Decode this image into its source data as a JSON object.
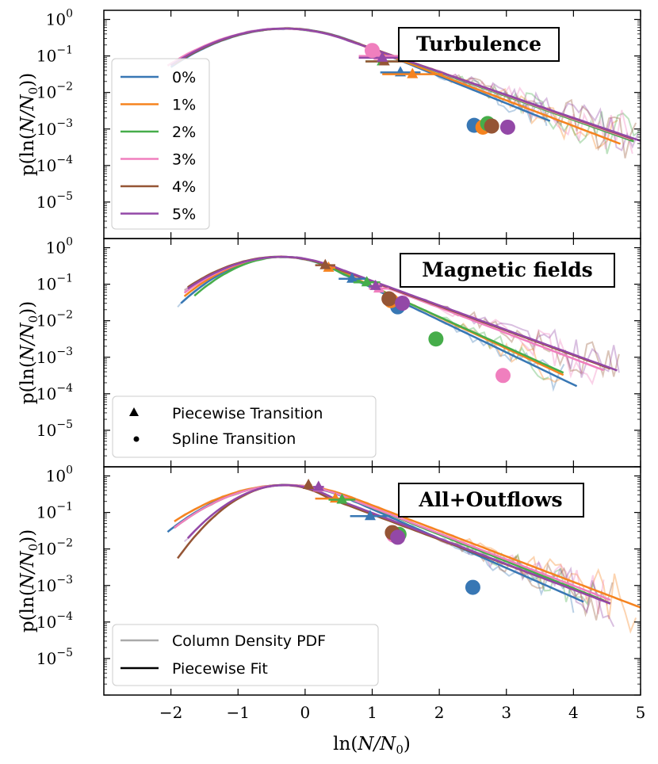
{
  "colors": {
    "0%": "#3877b4",
    "1%": "#f5831f",
    "2%": "#46ad4a",
    "3%": "#f07fbe",
    "4%": "#955535",
    "5%": "#9348a7"
  },
  "chart_data": {
    "type": "line",
    "xlabel_prefix": "ln(",
    "xlabel_var": "N/N",
    "xlabel_sub": "0",
    "xlabel_suffix": ")",
    "ylabel_prefix": "p(ln(",
    "ylabel_var": "N/N",
    "ylabel_sub": "0",
    "ylabel_suffix": "))",
    "xlim": [
      -3,
      5
    ],
    "x_ticks": [
      -2,
      -1,
      0,
      1,
      2,
      3,
      4,
      5
    ],
    "x_tick_labels": [
      "−2",
      "−1",
      "0",
      "1",
      "2",
      "3",
      "4",
      "5"
    ],
    "ylim_log10": [
      -6,
      0.25
    ],
    "y_ticks_log10": [
      0,
      -1,
      -2,
      -3,
      -4,
      -5
    ],
    "y_tick_base": "10",
    "y_tick_exps": [
      "0",
      "−1",
      "−2",
      "−3",
      "−4",
      "−5"
    ],
    "series_names": [
      "0%",
      "1%",
      "2%",
      "3%",
      "4%",
      "5%"
    ],
    "panels": [
      {
        "title": "Turbulence",
        "legend": {
          "placement": "left",
          "entries": [
            "0%",
            "1%",
            "2%",
            "3%",
            "4%",
            "5%"
          ]
        },
        "fits": [
          {
            "series": "0%",
            "peak": -0.28,
            "width": 0.78,
            "slope": 1.06,
            "xstart": -2.0,
            "xend": 3.65,
            "lo": -1.92,
            "hi": 3.65
          },
          {
            "series": "1%",
            "peak": -0.3,
            "width": 0.78,
            "slope": 1.0,
            "xstart": -1.95,
            "xend": 4.7,
            "lo": -1.9,
            "hi": 4.7
          },
          {
            "series": "2%",
            "peak": -0.3,
            "width": 0.78,
            "slope": 0.93,
            "xstart": -1.95,
            "xend": 4.9,
            "lo": -1.9,
            "hi": 5.0
          },
          {
            "series": "3%",
            "peak": -0.32,
            "width": 0.8,
            "slope": 0.92,
            "xstart": -2.05,
            "xend": 4.85,
            "lo": -2.0,
            "hi": 4.9
          },
          {
            "series": "4%",
            "peak": -0.3,
            "width": 0.78,
            "slope": 0.91,
            "xstart": -1.95,
            "xend": 4.9,
            "lo": -1.95,
            "hi": 4.95
          },
          {
            "series": "5%",
            "peak": -0.32,
            "width": 0.78,
            "slope": 0.9,
            "xstart": -2.0,
            "xend": 5.0,
            "lo": -2.0,
            "hi": 5.0
          }
        ],
        "triangles": [
          {
            "series": "0%",
            "x": 1.42,
            "y_log10": -1.45,
            "xerr": 0.3
          },
          {
            "series": "1%",
            "x": 1.6,
            "y_log10": -1.5,
            "xerr": 0.45
          },
          {
            "series": "2%",
            "x": 1.15,
            "y_log10": -1.15,
            "xerr": 0.25
          },
          {
            "series": "3%",
            "x": 1.1,
            "y_log10": -1.0,
            "xerr": 0.3
          },
          {
            "series": "4%",
            "x": 1.18,
            "y_log10": -1.15,
            "xerr": 0.28
          },
          {
            "series": "5%",
            "x": 1.15,
            "y_log10": -1.05,
            "xerr": 0.35
          }
        ],
        "circles": [
          {
            "series": "0%",
            "x": 2.52,
            "y_log10": -2.9
          },
          {
            "series": "1%",
            "x": 2.65,
            "y_log10": -2.95
          },
          {
            "series": "2%",
            "x": 2.72,
            "y_log10": -2.85
          },
          {
            "series": "3%",
            "x": 1.0,
            "y_log10": -0.85
          },
          {
            "series": "4%",
            "x": 2.78,
            "y_log10": -2.92
          },
          {
            "series": "5%",
            "x": 3.02,
            "y_log10": -2.95
          }
        ]
      },
      {
        "title": "Magnetic fields",
        "legend": {
          "placement": "lower-left",
          "entries": [
            {
              "marker": "triangle",
              "label": "Piecewise Transition"
            },
            {
              "marker": "circle",
              "label": "Spline Transition"
            }
          ]
        },
        "fits": [
          {
            "series": "0%",
            "peak": -0.35,
            "width": 0.62,
            "slope": 1.26,
            "xstart": -1.85,
            "xend": 4.05,
            "lo": -1.9,
            "hi": 3.9
          },
          {
            "series": "1%",
            "peak": -0.35,
            "width": 0.65,
            "slope": 1.22,
            "xstart": -1.8,
            "xend": 3.85,
            "lo": -1.8,
            "hi": 3.8
          },
          {
            "series": "2%",
            "peak": -0.32,
            "width": 0.6,
            "slope": 1.18,
            "xstart": -1.65,
            "xend": 3.85,
            "lo": -1.65,
            "hi": 3.7
          },
          {
            "series": "3%",
            "peak": -0.35,
            "width": 0.68,
            "slope": 1.0,
            "xstart": -1.8,
            "xend": 4.45,
            "lo": -1.8,
            "hi": 4.4
          },
          {
            "series": "4%",
            "peak": -0.38,
            "width": 0.7,
            "slope": 0.96,
            "xstart": -1.75,
            "xend": 4.55,
            "lo": -1.8,
            "hi": 4.7
          },
          {
            "series": "5%",
            "peak": -0.35,
            "width": 0.7,
            "slope": 0.96,
            "xstart": -1.75,
            "xend": 4.65,
            "lo": -1.8,
            "hi": 4.75
          }
        ],
        "triangles": [
          {
            "series": "0%",
            "x": 0.7,
            "y_log10": -0.85,
            "xerr": 0.2
          },
          {
            "series": "1%",
            "x": 0.35,
            "y_log10": -0.55,
            "xerr": 0.1
          },
          {
            "series": "2%",
            "x": 0.92,
            "y_log10": -0.95,
            "xerr": 0.2
          },
          {
            "series": "3%",
            "x": 1.1,
            "y_log10": -1.12,
            "xerr": 0.15
          },
          {
            "series": "4%",
            "x": 0.3,
            "y_log10": -0.48,
            "xerr": 0.15
          },
          {
            "series": "5%",
            "x": 1.05,
            "y_log10": -1.05,
            "xerr": 0.1
          }
        ],
        "circles": [
          {
            "series": "0%",
            "x": 1.38,
            "y_log10": -1.62
          },
          {
            "series": "1%",
            "x": 1.28,
            "y_log10": -1.45
          },
          {
            "series": "2%",
            "x": 1.95,
            "y_log10": -2.5
          },
          {
            "series": "3%",
            "x": 2.95,
            "y_log10": -3.5
          },
          {
            "series": "4%",
            "x": 1.25,
            "y_log10": -1.4
          },
          {
            "series": "5%",
            "x": 1.45,
            "y_log10": -1.52
          }
        ]
      },
      {
        "title": "All+Outflows",
        "legend": {
          "placement": "lower-left",
          "entries": [
            {
              "style": "gray",
              "label": "Column Density PDF"
            },
            {
              "style": "black",
              "label": "Piecewise Fit"
            }
          ]
        },
        "fits": [
          {
            "series": "0%",
            "peak": -0.3,
            "width": 0.72,
            "slope": 1.15,
            "xstart": -2.05,
            "xend": 4.15,
            "lo": -2.0,
            "hi": 4.0
          },
          {
            "series": "1%",
            "peak": -0.28,
            "width": 0.78,
            "slope": 1.0,
            "xstart": -1.95,
            "xend": 5.0,
            "lo": -1.95,
            "hi": 5.0
          },
          {
            "series": "2%",
            "peak": -0.28,
            "width": 0.72,
            "slope": 1.05,
            "xstart": -1.95,
            "xend": 4.45,
            "lo": -1.95,
            "hi": 4.4
          },
          {
            "series": "3%",
            "peak": -0.28,
            "width": 0.72,
            "slope": 1.02,
            "xstart": -1.95,
            "xend": 4.55,
            "lo": -1.95,
            "hi": 4.5
          },
          {
            "series": "4%",
            "peak": -0.32,
            "width": 0.52,
            "slope": 0.98,
            "xstart": -1.9,
            "xend": 4.55,
            "lo": -1.9,
            "hi": 4.6
          },
          {
            "series": "5%",
            "peak": -0.3,
            "width": 0.56,
            "slope": 1.0,
            "xstart": -1.75,
            "xend": 4.55,
            "lo": -1.8,
            "hi": 4.6
          }
        ],
        "triangles": [
          {
            "series": "0%",
            "x": 0.97,
            "y_log10": -1.1,
            "xerr": 0.3
          },
          {
            "series": "1%",
            "x": 0.45,
            "y_log10": -0.62,
            "xerr": 0.3
          },
          {
            "series": "2%",
            "x": 0.55,
            "y_log10": -0.65,
            "xerr": 0.2
          },
          {
            "series": "3%",
            "x": 0.2,
            "y_log10": -0.32,
            "xerr": 0.08
          },
          {
            "series": "4%",
            "x": 0.05,
            "y_log10": -0.25,
            "xerr": 0.05
          },
          {
            "series": "5%",
            "x": 0.2,
            "y_log10": -0.3,
            "xerr": 0.08
          }
        ],
        "circles": [
          {
            "series": "0%",
            "x": 2.5,
            "y_log10": -3.05
          },
          {
            "series": "1%",
            "x": 1.35,
            "y_log10": -1.62
          },
          {
            "series": "2%",
            "x": 1.4,
            "y_log10": -1.6
          },
          {
            "series": "3%",
            "x": 1.32,
            "y_log10": -1.62
          },
          {
            "series": "4%",
            "x": 1.3,
            "y_log10": -1.55
          },
          {
            "series": "5%",
            "x": 1.38,
            "y_log10": -1.68
          }
        ]
      }
    ]
  }
}
